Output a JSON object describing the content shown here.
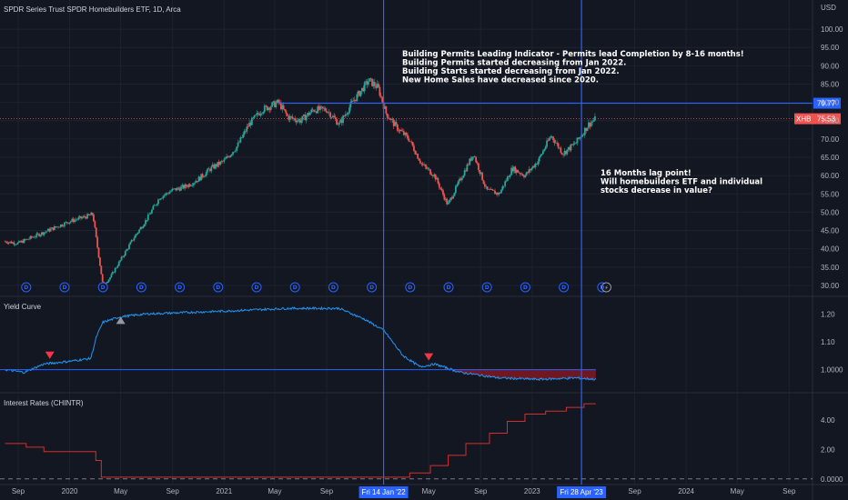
{
  "chart_data": [
    {
      "type": "candlestick",
      "title": "SPDR Series Trust SPDR Homebuilders ETF, 1D, Arca",
      "currency": "USD",
      "series": [
        {
          "name": "XHB",
          "last_price_label": "75.53",
          "values": [
            {
              "date": "2019-08-01",
              "value": 42
            },
            {
              "date": "2019-09-01",
              "value": 41.5
            },
            {
              "date": "2019-10-01",
              "value": 43
            },
            {
              "date": "2019-11-01",
              "value": 44.5
            },
            {
              "date": "2019-12-01",
              "value": 46
            },
            {
              "date": "2020-01-01",
              "value": 47.5
            },
            {
              "date": "2020-02-15",
              "value": 49
            },
            {
              "date": "2020-02-25",
              "value": 49.5
            },
            {
              "date": "2020-03-05",
              "value": 42
            },
            {
              "date": "2020-03-20",
              "value": 30
            },
            {
              "date": "2020-04-05",
              "value": 32
            },
            {
              "date": "2020-05-01",
              "value": 37
            },
            {
              "date": "2020-06-01",
              "value": 43
            },
            {
              "date": "2020-07-01",
              "value": 48
            },
            {
              "date": "2020-08-01",
              "value": 54
            },
            {
              "date": "2020-09-01",
              "value": 56
            },
            {
              "date": "2020-10-01",
              "value": 57
            },
            {
              "date": "2020-11-01",
              "value": 59
            },
            {
              "date": "2020-12-01",
              "value": 62
            },
            {
              "date": "2021-01-01",
              "value": 64
            },
            {
              "date": "2021-02-01",
              "value": 68
            },
            {
              "date": "2021-03-01",
              "value": 74
            },
            {
              "date": "2021-04-01",
              "value": 78
            },
            {
              "date": "2021-05-10",
              "value": 80
            },
            {
              "date": "2021-06-01",
              "value": 76
            },
            {
              "date": "2021-07-01",
              "value": 75
            },
            {
              "date": "2021-08-01",
              "value": 78
            },
            {
              "date": "2021-09-01",
              "value": 78
            },
            {
              "date": "2021-10-01",
              "value": 74
            },
            {
              "date": "2021-11-01",
              "value": 80
            },
            {
              "date": "2021-12-10",
              "value": 86
            },
            {
              "date": "2022-01-01",
              "value": 84
            },
            {
              "date": "2022-01-20",
              "value": 77
            },
            {
              "date": "2022-02-15",
              "value": 73
            },
            {
              "date": "2022-03-15",
              "value": 70
            },
            {
              "date": "2022-04-15",
              "value": 63
            },
            {
              "date": "2022-05-15",
              "value": 60
            },
            {
              "date": "2022-06-15",
              "value": 52
            },
            {
              "date": "2022-07-15",
              "value": 59
            },
            {
              "date": "2022-08-15",
              "value": 66
            },
            {
              "date": "2022-09-15",
              "value": 56
            },
            {
              "date": "2022-10-15",
              "value": 55
            },
            {
              "date": "2022-11-15",
              "value": 62
            },
            {
              "date": "2022-12-15",
              "value": 60
            },
            {
              "date": "2023-01-15",
              "value": 64
            },
            {
              "date": "2023-02-15",
              "value": 71
            },
            {
              "date": "2023-03-15",
              "value": 66
            },
            {
              "date": "2023-04-15",
              "value": 69
            },
            {
              "date": "2023-05-15",
              "value": 74
            },
            {
              "date": "2023-06-01",
              "value": 75.53
            }
          ]
        }
      ],
      "yaxis": {
        "ticks": [
          "30.00",
          "35.00",
          "40.00",
          "45.00",
          "50.00",
          "55.00",
          "60.00",
          "65.00",
          "70.00",
          "75.00",
          "80.00",
          "85.00",
          "90.00",
          "95.00",
          "100.00"
        ],
        "range": [
          28,
          103
        ]
      },
      "horizontal_line": {
        "value": 79.77,
        "label": "79.77"
      },
      "dividend_marker_label": "D",
      "dividend_dates": [
        "2019-09-20",
        "2019-12-20",
        "2020-03-20",
        "2020-06-19",
        "2020-09-18",
        "2020-12-18",
        "2021-03-19",
        "2021-06-18",
        "2021-09-17",
        "2021-12-17",
        "2022-03-18",
        "2022-06-17",
        "2022-09-16",
        "2022-12-16",
        "2023-03-17",
        "2023-06-16"
      ],
      "split_marker": {
        "date": "2023-06-26",
        "glyph": "⚡"
      },
      "annotations": [
        {
          "lines": [
            "Building Permits Leading Indicator - Permits lead Completion by 8-16 months!",
            "Building Permits started decreasing from Jan 2022.",
            "Building Starts started decreasing from Jan 2022.",
            "New Home Sales have decreased since 2020."
          ]
        },
        {
          "lines": [
            "16 Months lag point!",
            "Will homebuilders ETF and individual",
            "stocks decrease in value?"
          ]
        }
      ]
    },
    {
      "type": "line",
      "title": "Yield Curve",
      "series": [
        {
          "name": "Yield Curve",
          "values": [
            {
              "date": "2019-08-01",
              "value": 1.0
            },
            {
              "date": "2019-09-15",
              "value": 0.99
            },
            {
              "date": "2019-11-01",
              "value": 1.02
            },
            {
              "date": "2020-01-01",
              "value": 1.03
            },
            {
              "date": "2020-02-20",
              "value": 1.04
            },
            {
              "date": "2020-03-05",
              "value": 1.12
            },
            {
              "date": "2020-03-20",
              "value": 1.17
            },
            {
              "date": "2020-05-01",
              "value": 1.19
            },
            {
              "date": "2020-07-01",
              "value": 1.2
            },
            {
              "date": "2021-01-01",
              "value": 1.21
            },
            {
              "date": "2021-06-01",
              "value": 1.22
            },
            {
              "date": "2021-10-01",
              "value": 1.22
            },
            {
              "date": "2021-12-01",
              "value": 1.18
            },
            {
              "date": "2022-01-15",
              "value": 1.14
            },
            {
              "date": "2022-03-01",
              "value": 1.05
            },
            {
              "date": "2022-04-10",
              "value": 1.01
            },
            {
              "date": "2022-05-15",
              "value": 1.02
            },
            {
              "date": "2022-07-15",
              "value": 0.99
            },
            {
              "date": "2022-10-15",
              "value": 0.97
            },
            {
              "date": "2023-01-15",
              "value": 0.965
            },
            {
              "date": "2023-04-15",
              "value": 0.97
            },
            {
              "date": "2023-06-01",
              "value": 0.965
            }
          ]
        }
      ],
      "reference_line": 1.0,
      "yaxis": {
        "ticks": [
          "1.0000",
          "1.10",
          "1.20"
        ],
        "range": [
          0.93,
          1.25
        ]
      },
      "markers": [
        {
          "date": "2019-11-15",
          "type": "sell"
        },
        {
          "date": "2020-05-01",
          "type": "buy"
        },
        {
          "date": "2022-05-01",
          "type": "sell"
        }
      ]
    },
    {
      "type": "step",
      "title": "Interest Rates (CHINTR)",
      "series": [
        {
          "name": "Interest Rates (CHINTR)",
          "values": [
            {
              "date": "2019-08-01",
              "value": 2.4
            },
            {
              "date": "2019-09-20",
              "value": 2.15
            },
            {
              "date": "2019-11-01",
              "value": 1.85
            },
            {
              "date": "2020-03-03",
              "value": 1.25
            },
            {
              "date": "2020-03-16",
              "value": 0.12
            },
            {
              "date": "2022-03-17",
              "value": 0.4
            },
            {
              "date": "2022-05-05",
              "value": 0.9
            },
            {
              "date": "2022-06-16",
              "value": 1.6
            },
            {
              "date": "2022-07-28",
              "value": 2.4
            },
            {
              "date": "2022-09-22",
              "value": 3.1
            },
            {
              "date": "2022-11-03",
              "value": 3.9
            },
            {
              "date": "2022-12-15",
              "value": 4.4
            },
            {
              "date": "2023-02-02",
              "value": 4.6
            },
            {
              "date": "2023-03-23",
              "value": 4.85
            },
            {
              "date": "2023-05-04",
              "value": 5.1
            },
            {
              "date": "2023-06-01",
              "value": 5.1
            }
          ]
        }
      ],
      "yaxis": {
        "ticks": [
          "0.0000",
          "2.00",
          "4.00"
        ],
        "range": [
          -0.2,
          5.6
        ]
      }
    }
  ],
  "xaxis": {
    "ticks": [
      {
        "date": "2019-09-01",
        "label": "Sep"
      },
      {
        "date": "2020-01-01",
        "label": "2020"
      },
      {
        "date": "2020-05-01",
        "label": "May"
      },
      {
        "date": "2020-09-01",
        "label": "Sep"
      },
      {
        "date": "2021-01-01",
        "label": "2021"
      },
      {
        "date": "2021-05-01",
        "label": "May"
      },
      {
        "date": "2021-09-01",
        "label": "Sep"
      },
      {
        "date": "2022-05-01",
        "label": "May"
      },
      {
        "date": "2022-09-01",
        "label": "Sep"
      },
      {
        "date": "2023-01-01",
        "label": "2023"
      },
      {
        "date": "2023-09-01",
        "label": "Sep"
      },
      {
        "date": "2024-01-01",
        "label": "2024"
      },
      {
        "date": "2024-05-01",
        "label": "May"
      },
      {
        "date": "2024-09-01",
        "label": "Sep"
      }
    ],
    "range": [
      "2019-07-20",
      "2024-10-20"
    ],
    "highlighted": [
      {
        "date": "2022-01-14",
        "label": "Fri 14 Jan '22"
      },
      {
        "date": "2023-04-28",
        "label": "Fri 28 Apr '23"
      }
    ]
  },
  "colors": {
    "background": "#131722",
    "up": "#26a69a",
    "down": "#ef5350",
    "accent": "#2962ff",
    "yield_line": "#2196f3",
    "rate_line": "#d32f2f"
  }
}
